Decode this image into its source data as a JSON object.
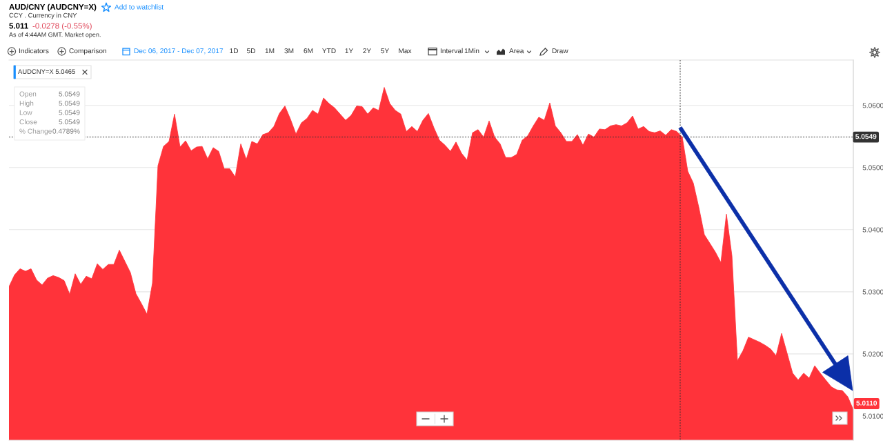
{
  "chart_data": {
    "type": "area",
    "title": "AUD/CNY (AUDCNY=X)",
    "subtitle": "CCY . Currency in CNY",
    "categories": [
      null,
      null,
      null,
      null,
      null,
      null,
      null,
      null,
      null,
      null,
      null,
      null,
      null,
      null,
      null,
      null,
      null,
      null,
      null,
      null,
      null,
      null,
      null,
      null,
      null,
      null,
      null,
      null,
      null,
      null,
      null,
      null,
      null,
      null,
      null,
      null,
      null,
      null,
      null,
      null,
      null,
      null,
      null,
      null,
      null,
      null,
      null,
      null,
      null,
      null,
      null,
      null,
      null,
      null,
      null,
      null,
      null,
      null,
      null,
      null,
      null,
      null,
      null,
      null,
      null,
      null,
      null,
      null,
      null,
      null,
      null,
      null,
      null,
      null,
      null,
      null,
      null,
      null,
      null,
      null,
      null,
      null,
      null,
      null,
      null,
      null,
      null,
      null,
      null,
      null,
      null,
      null,
      null,
      null,
      null,
      null,
      null,
      null,
      null,
      null,
      null,
      null,
      null,
      null,
      null,
      null,
      null,
      null,
      null,
      null,
      null,
      null,
      null,
      null,
      null,
      null,
      null,
      null,
      null,
      null,
      null,
      null,
      null,
      null,
      null,
      null,
      null,
      null,
      null,
      null,
      null,
      null,
      null,
      null,
      null,
      null,
      null,
      null,
      null,
      null,
      null,
      null,
      null,
      null,
      null,
      null,
      null,
      null,
      null,
      null,
      null,
      null,
      null,
      null
    ],
    "values": [
      5.0308,
      5.0327,
      5.0337,
      5.0333,
      5.0337,
      5.0319,
      5.0311,
      5.0322,
      5.0326,
      5.0323,
      5.0318,
      5.0296,
      5.0329,
      5.0312,
      5.0325,
      5.0321,
      5.0345,
      5.0336,
      5.0344,
      5.0344,
      5.0367,
      5.0349,
      5.0331,
      5.0297,
      5.0281,
      5.0264,
      5.0314,
      5.0503,
      5.0534,
      5.0542,
      5.0586,
      5.0533,
      5.0543,
      5.0527,
      5.0533,
      5.0534,
      5.0514,
      5.0532,
      5.0526,
      5.0498,
      5.0498,
      5.0485,
      5.0538,
      5.0513,
      5.0542,
      5.0538,
      5.0553,
      5.0556,
      5.0566,
      5.0587,
      5.0599,
      5.0578,
      5.0554,
      5.0572,
      5.0579,
      5.0592,
      5.0586,
      5.0612,
      5.0603,
      5.0596,
      5.0586,
      5.0576,
      5.0584,
      5.0599,
      5.0598,
      5.0586,
      5.0596,
      5.0592,
      5.0629,
      5.0603,
      5.0592,
      5.0586,
      5.0558,
      5.0566,
      5.0558,
      5.0576,
      5.0587,
      5.0564,
      5.0544,
      5.0536,
      5.0526,
      5.0541,
      5.0523,
      5.0512,
      5.0556,
      5.0561,
      5.0549,
      5.0575,
      5.0549,
      5.0538,
      5.0516,
      5.0516,
      5.0521,
      5.0544,
      5.0551,
      5.0567,
      5.0581,
      5.0576,
      5.0604,
      5.0567,
      5.0556,
      5.0542,
      5.0542,
      5.0553,
      5.0536,
      5.0554,
      5.0549,
      5.0562,
      5.0561,
      5.0567,
      5.0569,
      5.0567,
      5.0572,
      5.0583,
      5.0562,
      5.0566,
      5.0558,
      5.0556,
      5.0559,
      5.0552,
      5.0561,
      5.0558,
      5.0549,
      5.0494,
      5.0475,
      5.0436,
      5.0392,
      5.0378,
      5.0364,
      5.0347,
      5.0425,
      5.0358,
      5.0189,
      5.0205,
      5.0227,
      5.0223,
      5.0219,
      5.0214,
      5.0208,
      5.0197,
      5.0233,
      5.0201,
      5.0169,
      5.0158,
      5.0169,
      5.0161,
      5.0181,
      5.0169,
      5.0158,
      5.0147,
      5.0142,
      5.0141,
      5.0131,
      5.011
    ],
    "color": "#ff333a",
    "ylim": [
      5.0061,
      5.0673
    ],
    "yticks": [
      {
        "value": 5.01,
        "label": "5.0100"
      },
      {
        "value": 5.02,
        "label": "5.0200"
      },
      {
        "value": 5.03,
        "label": "5.0300"
      },
      {
        "value": 5.04,
        "label": "5.0400"
      },
      {
        "value": 5.05,
        "label": "5.0500"
      },
      {
        "value": 5.06,
        "label": "5.0600"
      }
    ],
    "grid": "y",
    "tick_labels": "y",
    "ref_lines": [
      {
        "axis": "y",
        "value": 5.0549,
        "label": "5.0549",
        "color": "#333333",
        "line_style": "dotted"
      }
    ],
    "annotations": [
      "5.011",
      "-0.0278 (-0.55%)",
      "As of 4:44AM GMT. Market open.",
      "Add to watchlist",
      "Indicators",
      "Comparison",
      "Dec 06, 2017 - Dec 07, 2017",
      "1D",
      "5D",
      "1M",
      "3M",
      "6M",
      "YTD",
      "1Y",
      "2Y",
      "5Y",
      "Max",
      "Interval",
      "1Min",
      "Area",
      "Draw",
      "AUDCNY=X 5.0465",
      "Open",
      "5.0549",
      "High",
      "5.0549",
      "Low",
      "5.0549",
      "Close",
      "5.0549",
      "% Change",
      "0.4789%",
      "5.0110"
    ]
  }
}
